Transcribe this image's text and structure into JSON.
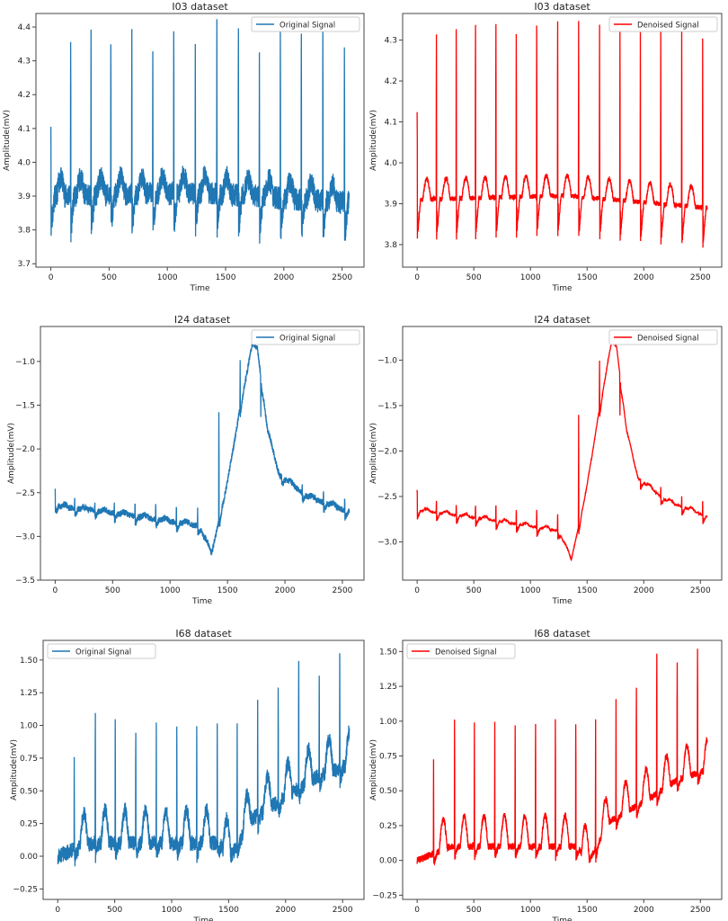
{
  "chart_data": [
    {
      "type": "line",
      "title": "I03 dataset",
      "xlabel": "Time",
      "ylabel": "Amplitude(mV)",
      "legend": "Original Signal",
      "legend_position": "upper right",
      "color": "#1f77b4",
      "xlim": [
        -128,
        2688
      ],
      "ylim": [
        3.69,
        4.44
      ],
      "xticks": [
        0,
        500,
        1000,
        1500,
        2000,
        2500
      ],
      "yticks": [
        3.7,
        3.8,
        3.9,
        4.0,
        4.1,
        4.2,
        4.3,
        4.4
      ],
      "noise": 0.035,
      "beats": [
        0,
        170,
        345,
        515,
        695,
        875,
        1055,
        1240,
        1425,
        1610,
        1790,
        1970,
        2150,
        2335,
        2520
      ],
      "peaks": [
        4.14,
        4.36,
        4.4,
        4.37,
        4.37,
        4.34,
        4.38,
        4.38,
        4.41,
        4.37,
        4.36,
        4.38,
        4.37,
        4.37,
        4.34
      ],
      "trough_depth": 0.13,
      "t_wave": 0.05,
      "baseline": [
        [
          0,
          3.9
        ],
        [
          1300,
          3.91
        ],
        [
          2560,
          3.88
        ]
      ],
      "grid": false
    },
    {
      "type": "line",
      "title": "I03 dataset",
      "xlabel": "Time",
      "ylabel": "Amplitude(mV)",
      "legend": "Denoised Signal",
      "legend_position": "upper right",
      "color": "#ff0000",
      "xlim": [
        -128,
        2688
      ],
      "ylim": [
        3.745,
        4.365
      ],
      "xticks": [
        0,
        500,
        1000,
        1500,
        2000,
        2500
      ],
      "yticks": [
        3.8,
        3.9,
        4.0,
        4.1,
        4.2,
        4.3
      ],
      "noise": 0.006,
      "beats": [
        0,
        170,
        345,
        515,
        695,
        875,
        1055,
        1240,
        1425,
        1610,
        1790,
        1970,
        2150,
        2335,
        2520
      ],
      "peaks": [
        4.13,
        4.31,
        4.33,
        4.34,
        4.34,
        4.32,
        4.33,
        4.34,
        4.35,
        4.34,
        4.33,
        4.32,
        4.33,
        4.34,
        4.3
      ],
      "trough_depth": 0.12,
      "t_wave": 0.05,
      "baseline": [
        [
          0,
          3.91
        ],
        [
          1300,
          3.92
        ],
        [
          2560,
          3.89
        ]
      ],
      "grid": false
    },
    {
      "type": "line",
      "title": "I24 dataset",
      "xlabel": "Time",
      "ylabel": "Amplitude(mV)",
      "legend": "Original Signal",
      "legend_position": "upper right",
      "color": "#1f77b4",
      "xlim": [
        -128,
        2688
      ],
      "ylim": [
        -3.5,
        -0.6
      ],
      "xticks": [
        0,
        500,
        1000,
        1500,
        2000,
        2500
      ],
      "yticks": [
        -3.5,
        -3.0,
        -2.5,
        -2.0,
        -1.5,
        -1.0
      ],
      "noise": 0.035,
      "beats": [
        0,
        170,
        345,
        515,
        695,
        875,
        1055,
        1240,
        1425,
        1610,
        1790,
        1970,
        2150,
        2335,
        2520
      ],
      "peaks": [
        -2.42,
        -2.55,
        -2.6,
        -2.6,
        -2.6,
        -2.65,
        -2.65,
        -2.7,
        -1.6,
        -1.0,
        -1.6,
        -2.3,
        -2.4,
        -2.5,
        -2.55
      ],
      "trough_depth": 0.12,
      "t_wave": 0.03,
      "baseline": [
        [
          0,
          -2.65
        ],
        [
          600,
          -2.75
        ],
        [
          1250,
          -2.88
        ],
        [
          1360,
          -3.2
        ],
        [
          1500,
          -2.4
        ],
        [
          1600,
          -1.6
        ],
        [
          1720,
          -0.8
        ],
        [
          1760,
          -0.85
        ],
        [
          1850,
          -1.8
        ],
        [
          1950,
          -2.3
        ],
        [
          2200,
          -2.55
        ],
        [
          2560,
          -2.72
        ]
      ],
      "grid": false
    },
    {
      "type": "line",
      "title": "I24 dataset",
      "xlabel": "Time",
      "ylabel": "Amplitude(mV)",
      "legend": "Denoised Signal",
      "legend_position": "upper right",
      "color": "#ff0000",
      "xlim": [
        -128,
        2688
      ],
      "ylim": [
        -3.42,
        -0.63
      ],
      "xticks": [
        0,
        500,
        1000,
        1500,
        2000,
        2500
      ],
      "yticks": [
        -3.0,
        -2.5,
        -2.0,
        -1.5,
        -1.0
      ],
      "noise": 0.008,
      "beats": [
        0,
        170,
        345,
        515,
        695,
        875,
        1055,
        1240,
        1425,
        1610,
        1790,
        1970,
        2150,
        2335,
        2520
      ],
      "peaks": [
        -2.42,
        -2.55,
        -2.6,
        -2.6,
        -2.6,
        -2.65,
        -2.65,
        -2.7,
        -1.6,
        -1.0,
        -1.6,
        -2.3,
        -2.4,
        -2.5,
        -2.55
      ],
      "trough_depth": 0.12,
      "t_wave": 0.03,
      "baseline": [
        [
          0,
          -2.65
        ],
        [
          600,
          -2.75
        ],
        [
          1250,
          -2.88
        ],
        [
          1360,
          -3.2
        ],
        [
          1500,
          -2.4
        ],
        [
          1600,
          -1.6
        ],
        [
          1720,
          -0.8
        ],
        [
          1760,
          -0.85
        ],
        [
          1850,
          -1.8
        ],
        [
          1950,
          -2.3
        ],
        [
          2200,
          -2.55
        ],
        [
          2560,
          -2.72
        ]
      ],
      "grid": false
    },
    {
      "type": "line",
      "title": "I68 dataset",
      "xlabel": "Time",
      "ylabel": "Amplitude(mV)",
      "legend": "Original Signal",
      "legend_position": "upper left",
      "color": "#1f77b4",
      "xlim": [
        -128,
        2688
      ],
      "ylim": [
        -0.33,
        1.65
      ],
      "xticks": [
        0,
        500,
        1000,
        1500,
        2000,
        2500
      ],
      "yticks": [
        -0.25,
        0.0,
        0.25,
        0.5,
        0.75,
        1.0,
        1.25,
        1.5
      ],
      "noise": 0.06,
      "beats": [
        145,
        330,
        505,
        685,
        865,
        1045,
        1220,
        1400,
        1575,
        1755,
        1935,
        2115,
        2295,
        2475
      ],
      "peaks": [
        0.77,
        1.04,
        1.01,
        0.99,
        0.98,
        1.02,
        1.04,
        1.04,
        1.0,
        1.25,
        1.28,
        1.53,
        1.44,
        1.59
      ],
      "trough_depth": 0.12,
      "t_wave": 0.25,
      "baseline": [
        [
          0,
          0.0
        ],
        [
          300,
          0.1
        ],
        [
          1400,
          0.1
        ],
        [
          1520,
          0.0
        ],
        [
          1700,
          0.28
        ],
        [
          2000,
          0.45
        ],
        [
          2300,
          0.62
        ],
        [
          2560,
          0.7
        ]
      ],
      "grid": false
    },
    {
      "type": "line",
      "title": "I68 dataset",
      "xlabel": "Time",
      "ylabel": "Amplitude(mV)",
      "legend": "Denoised Signal",
      "legend_position": "upper left",
      "color": "#ff0000",
      "xlim": [
        -128,
        2688
      ],
      "ylim": [
        -0.28,
        1.58
      ],
      "xticks": [
        0,
        500,
        1000,
        1500,
        2000,
        2500
      ],
      "yticks": [
        -0.25,
        0.0,
        0.25,
        0.5,
        0.75,
        1.0,
        1.25,
        1.5
      ],
      "noise": 0.025,
      "beats": [
        145,
        330,
        505,
        685,
        865,
        1045,
        1220,
        1400,
        1575,
        1755,
        1935,
        2115,
        2295,
        2475
      ],
      "peaks": [
        0.72,
        1.0,
        1.0,
        0.99,
        0.99,
        1.0,
        1.0,
        1.0,
        1.0,
        1.15,
        1.25,
        1.48,
        1.42,
        1.52
      ],
      "trough_depth": 0.1,
      "t_wave": 0.22,
      "baseline": [
        [
          0,
          0.0
        ],
        [
          300,
          0.1
        ],
        [
          1400,
          0.1
        ],
        [
          1520,
          0.0
        ],
        [
          1700,
          0.28
        ],
        [
          2000,
          0.42
        ],
        [
          2300,
          0.58
        ],
        [
          2560,
          0.65
        ]
      ],
      "grid": false
    }
  ]
}
